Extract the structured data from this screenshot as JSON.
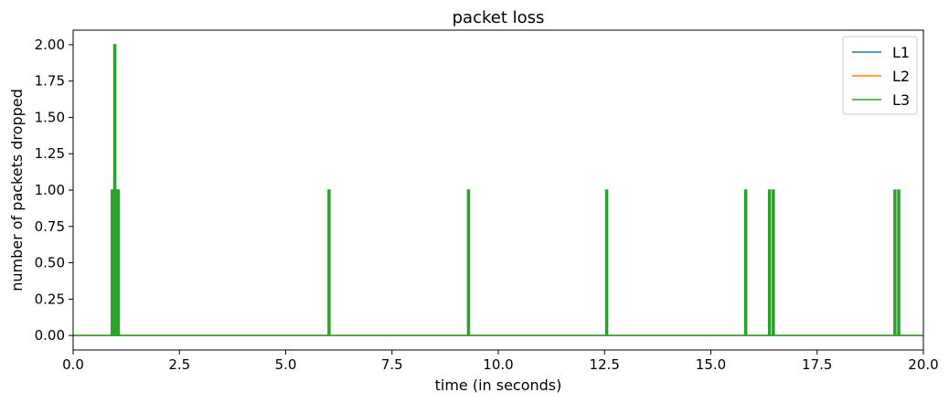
{
  "chart_data": {
    "type": "line",
    "title": "packet loss",
    "xlabel": "time (in seconds)",
    "ylabel": "number of packets dropped",
    "xlim": [
      0,
      20
    ],
    "ylim": [
      -0.1,
      2.1
    ],
    "xticks": [
      0,
      2.5,
      5,
      7.5,
      10,
      12.5,
      15,
      17.5,
      20
    ],
    "xtick_labels": [
      "0.0",
      "2.5",
      "5.0",
      "7.5",
      "10.0",
      "12.5",
      "15.0",
      "17.5",
      "20.0"
    ],
    "yticks": [
      0,
      0.25,
      0.5,
      0.75,
      1,
      1.25,
      1.5,
      1.75,
      2
    ],
    "ytick_labels": [
      "0.00",
      "0.25",
      "0.50",
      "0.75",
      "1.00",
      "1.25",
      "1.50",
      "1.75",
      "2.00"
    ],
    "grid": false,
    "legend_position": "top-right",
    "series": [
      {
        "name": "L1",
        "color": "#1f77b4",
        "spikes": []
      },
      {
        "name": "L2",
        "color": "#ff7f0e",
        "spikes": []
      },
      {
        "name": "L3",
        "color": "#2ca02c",
        "spikes": [
          {
            "t": 0.92,
            "v": 1
          },
          {
            "t": 0.95,
            "v": 1
          },
          {
            "t": 0.98,
            "v": 2
          },
          {
            "t": 1.0,
            "v": 1
          },
          {
            "t": 1.03,
            "v": 1
          },
          {
            "t": 1.06,
            "v": 1
          },
          {
            "t": 6.02,
            "v": 1
          },
          {
            "t": 9.3,
            "v": 1
          },
          {
            "t": 12.55,
            "v": 1
          },
          {
            "t": 15.82,
            "v": 1
          },
          {
            "t": 16.38,
            "v": 1
          },
          {
            "t": 16.47,
            "v": 1
          },
          {
            "t": 19.33,
            "v": 1
          },
          {
            "t": 19.42,
            "v": 1
          }
        ]
      }
    ]
  }
}
